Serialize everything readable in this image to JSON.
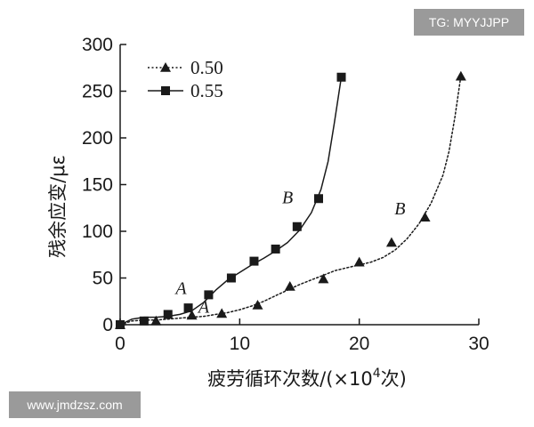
{
  "watermarks": {
    "top_right": "TG: MYYJJPP",
    "bottom_left": "www.jmdzsz.com"
  },
  "chart_data": {
    "type": "line",
    "title": "",
    "xlabel_main": "疲劳循环次数/(×10",
    "xlabel_sup": "4",
    "xlabel_end": "次)",
    "ylabel": "残余应变/με",
    "xlim": [
      0,
      30
    ],
    "ylim": [
      0,
      300
    ],
    "x_ticks": [
      0,
      10,
      20,
      30
    ],
    "y_ticks": [
      0,
      50,
      100,
      150,
      200,
      250,
      300
    ],
    "grid": false,
    "legend_position": "top-left",
    "series": [
      {
        "name": "0.50",
        "marker": "triangle",
        "line_style": "dotted",
        "color": "#1a1a1a",
        "points": [
          [
            0,
            0
          ],
          [
            3,
            4
          ],
          [
            6,
            10
          ],
          [
            8.5,
            12
          ],
          [
            11.5,
            21
          ],
          [
            14.2,
            41
          ],
          [
            17,
            49
          ],
          [
            20,
            67
          ],
          [
            22.7,
            88
          ],
          [
            25.5,
            115
          ],
          [
            28.5,
            266
          ]
        ],
        "curve": [
          [
            0,
            0
          ],
          [
            1,
            4
          ],
          [
            2,
            5
          ],
          [
            3,
            5
          ],
          [
            4,
            6
          ],
          [
            5,
            7
          ],
          [
            6,
            8
          ],
          [
            7,
            9
          ],
          [
            8,
            11
          ],
          [
            9,
            13
          ],
          [
            10,
            16
          ],
          [
            11,
            20
          ],
          [
            12,
            25
          ],
          [
            13,
            31
          ],
          [
            14,
            37
          ],
          [
            15,
            43
          ],
          [
            16,
            48
          ],
          [
            17,
            53
          ],
          [
            18,
            58
          ],
          [
            19,
            61
          ],
          [
            20,
            64
          ],
          [
            21,
            67
          ],
          [
            22,
            72
          ],
          [
            23,
            80
          ],
          [
            24,
            92
          ],
          [
            25,
            108
          ],
          [
            26,
            130
          ],
          [
            27,
            160
          ],
          [
            27.5,
            185
          ],
          [
            28,
            222
          ],
          [
            28.5,
            266
          ]
        ]
      },
      {
        "name": "0.55",
        "marker": "square",
        "line_style": "solid",
        "color": "#1a1a1a",
        "points": [
          [
            0,
            0
          ],
          [
            2,
            4
          ],
          [
            4,
            11
          ],
          [
            5.7,
            18
          ],
          [
            7.4,
            32
          ],
          [
            9.3,
            50
          ],
          [
            11.2,
            68
          ],
          [
            13,
            81
          ],
          [
            14.8,
            105
          ],
          [
            16.6,
            135
          ],
          [
            18.5,
            265
          ]
        ],
        "curve": [
          [
            0,
            0
          ],
          [
            1,
            6
          ],
          [
            2,
            8
          ],
          [
            3,
            8
          ],
          [
            4,
            9
          ],
          [
            5,
            11
          ],
          [
            6,
            15
          ],
          [
            7,
            24
          ],
          [
            8,
            37
          ],
          [
            9,
            48
          ],
          [
            10,
            56
          ],
          [
            11,
            64
          ],
          [
            12,
            71
          ],
          [
            13,
            79
          ],
          [
            14,
            88
          ],
          [
            15,
            101
          ],
          [
            16,
            120
          ],
          [
            16.8,
            145
          ],
          [
            17.4,
            175
          ],
          [
            17.9,
            215
          ],
          [
            18.5,
            265
          ]
        ]
      }
    ],
    "annotations": [
      {
        "text": "A",
        "x": 5.1,
        "y": 33
      },
      {
        "text": "A",
        "x": 7.0,
        "y": 13
      },
      {
        "text": "B",
        "x": 14.0,
        "y": 130
      },
      {
        "text": "B",
        "x": 23.4,
        "y": 118
      }
    ]
  }
}
